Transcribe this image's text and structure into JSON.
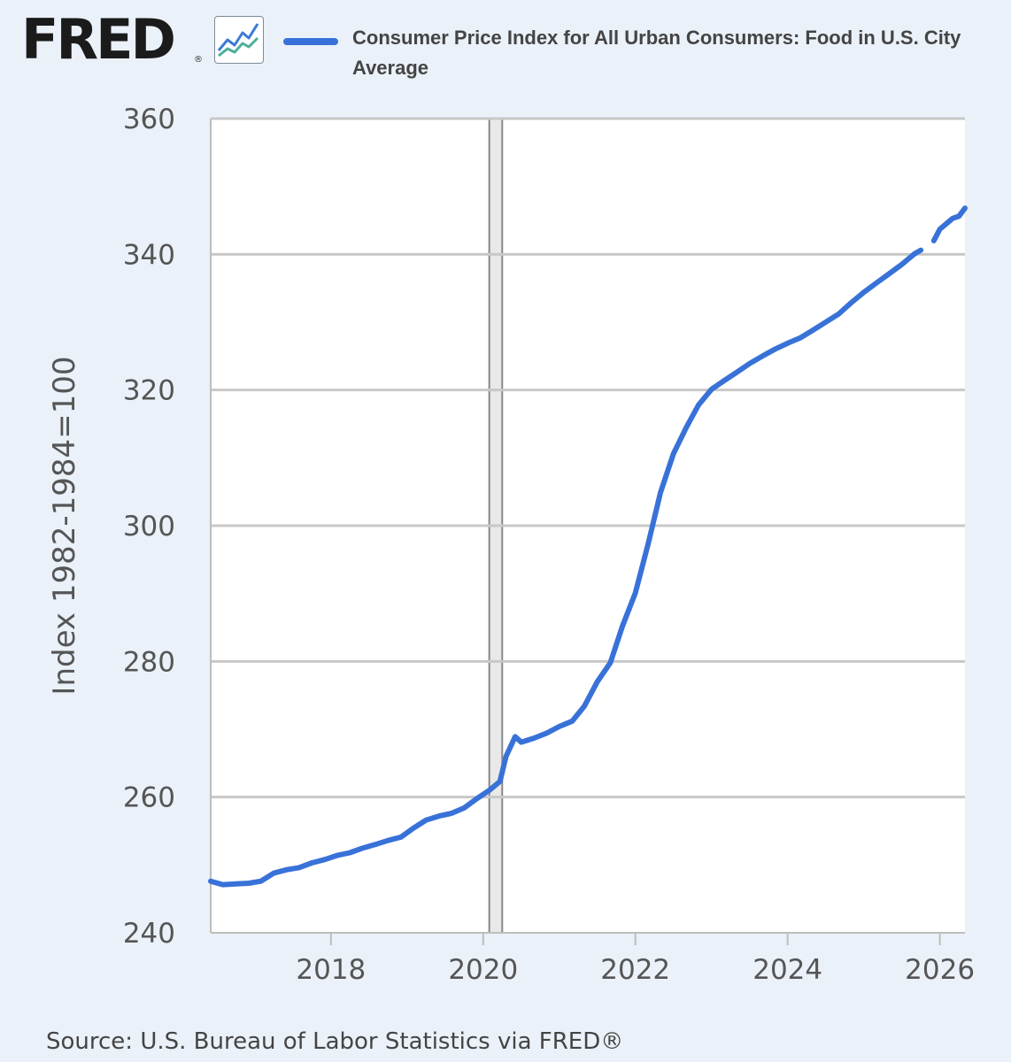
{
  "header": {
    "logo_text": "FRED",
    "logo_reg": "®"
  },
  "chart_data": {
    "type": "line",
    "series": [
      {
        "name": "Consumer Price Index for All Urban Consumers: Food in U.S. City Average",
        "color": "#3872d8",
        "points": [
          [
            2016.42,
            247.6
          ],
          [
            2016.58,
            247.1
          ],
          [
            2016.75,
            247.2
          ],
          [
            2016.92,
            247.3
          ],
          [
            2017.08,
            247.6
          ],
          [
            2017.25,
            248.8
          ],
          [
            2017.42,
            249.3
          ],
          [
            2017.58,
            249.6
          ],
          [
            2017.75,
            250.3
          ],
          [
            2017.92,
            250.8
          ],
          [
            2018.08,
            251.4
          ],
          [
            2018.25,
            251.8
          ],
          [
            2018.42,
            252.5
          ],
          [
            2018.58,
            253.0
          ],
          [
            2018.75,
            253.6
          ],
          [
            2018.92,
            254.1
          ],
          [
            2019.08,
            255.4
          ],
          [
            2019.25,
            256.6
          ],
          [
            2019.42,
            257.2
          ],
          [
            2019.58,
            257.6
          ],
          [
            2019.75,
            258.4
          ],
          [
            2019.92,
            259.8
          ],
          [
            2020.08,
            261.0
          ],
          [
            2020.22,
            262.3
          ],
          [
            2020.3,
            266.0
          ],
          [
            2020.42,
            268.9
          ],
          [
            2020.5,
            268.1
          ],
          [
            2020.67,
            268.7
          ],
          [
            2020.83,
            269.4
          ],
          [
            2021.0,
            270.4
          ],
          [
            2021.17,
            271.2
          ],
          [
            2021.33,
            273.4
          ],
          [
            2021.5,
            277.0
          ],
          [
            2021.67,
            279.8
          ],
          [
            2021.83,
            285.2
          ],
          [
            2022.0,
            290.1
          ],
          [
            2022.17,
            297.4
          ],
          [
            2022.33,
            304.9
          ],
          [
            2022.5,
            310.6
          ],
          [
            2022.67,
            314.5
          ],
          [
            2022.83,
            317.8
          ],
          [
            2023.0,
            320.1
          ],
          [
            2023.17,
            321.4
          ],
          [
            2023.33,
            322.6
          ],
          [
            2023.5,
            323.9
          ],
          [
            2023.67,
            325.0
          ],
          [
            2023.83,
            326.0
          ],
          [
            2024.0,
            326.9
          ],
          [
            2024.17,
            327.7
          ],
          [
            2024.33,
            328.8
          ],
          [
            2024.5,
            330.0
          ],
          [
            2024.67,
            331.2
          ],
          [
            2024.83,
            332.8
          ],
          [
            2025.0,
            334.4
          ],
          [
            2025.17,
            335.8
          ],
          [
            2025.33,
            337.1
          ],
          [
            2025.5,
            338.5
          ],
          [
            2025.67,
            340.1
          ],
          [
            2025.75,
            340.6
          ],
          [
            2025.92,
            342.0
          ],
          [
            2026.0,
            343.7
          ],
          [
            2026.17,
            345.3
          ],
          [
            2026.25,
            345.6
          ],
          [
            2026.33,
            346.8
          ]
        ],
        "gap_after_x": 2025.75
      }
    ],
    "ylabel": "Index 1982-1984=100",
    "ylim": [
      240,
      360
    ],
    "yticks": [
      240,
      260,
      280,
      300,
      320,
      340,
      360
    ],
    "xlim": [
      2016.42,
      2026.33
    ],
    "xticks": [
      2018,
      2020,
      2022,
      2024,
      2026
    ],
    "recession_x": [
      2020.08,
      2020.25
    ],
    "grid": true,
    "legend_position": "top",
    "source": "Source: U.S. Bureau of Labor Statistics via FRED®"
  }
}
